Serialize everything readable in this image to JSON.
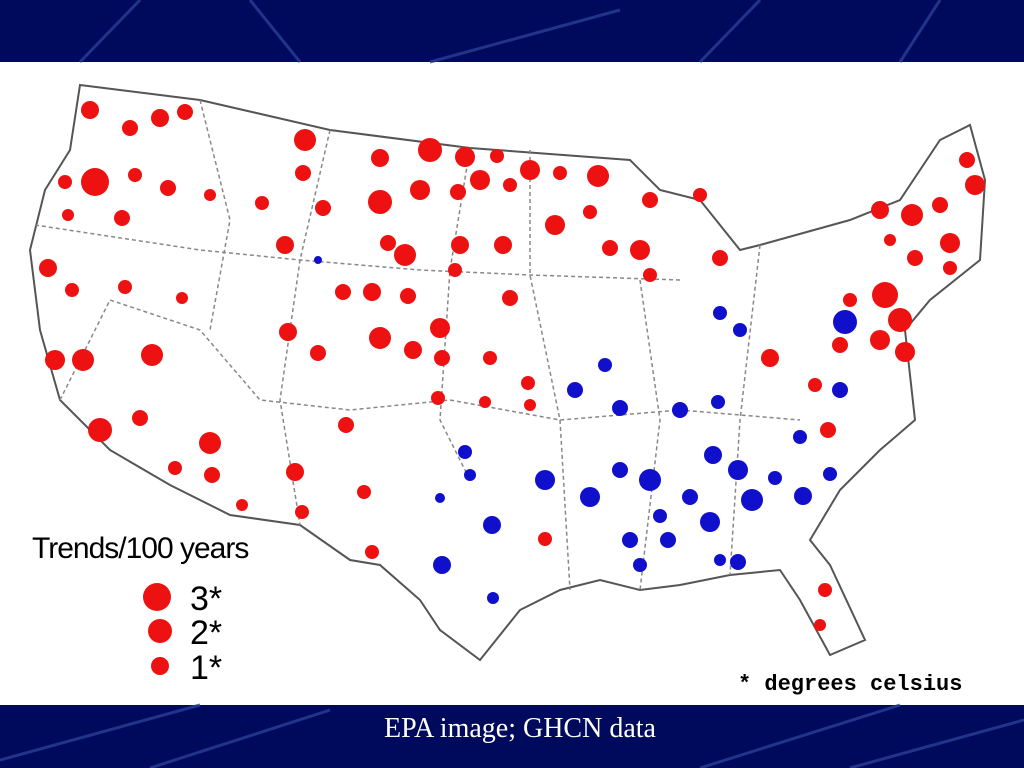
{
  "caption": "EPA image; GHCN data",
  "map": {
    "legend": {
      "title": "Trends/100 years",
      "items": [
        "3*",
        "2*",
        "1*"
      ]
    },
    "note": "* degrees celsius"
  }
}
